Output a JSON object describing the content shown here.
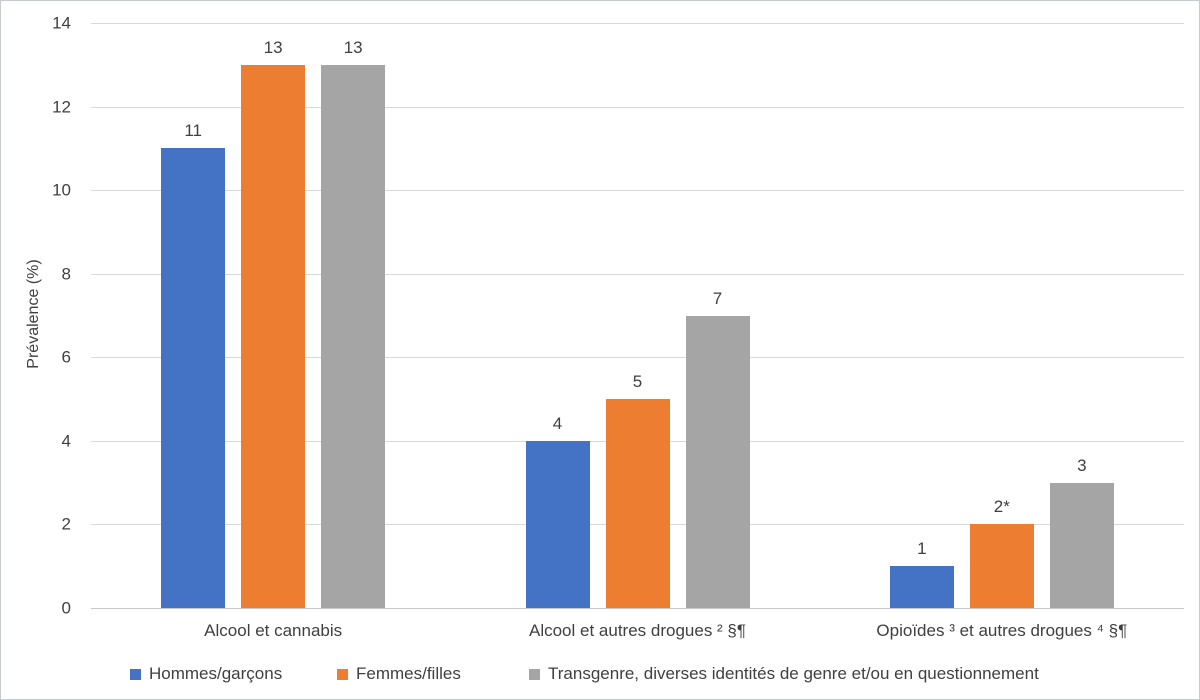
{
  "chart_data": {
    "type": "bar",
    "title": "",
    "xlabel": "",
    "ylabel": "Prévalence (%)",
    "ylim": [
      0,
      14
    ],
    "ytick_step": 2,
    "ytick_labels": [
      "0",
      "2",
      "4",
      "6",
      "8",
      "10",
      "12",
      "14"
    ],
    "grid": true,
    "legend_position": "bottom",
    "categories": [
      "Alcool et cannabis",
      "Alcool et autres drogues ² §¶",
      "Opioïdes ³  et autres drogues ⁴ §¶"
    ],
    "series": [
      {
        "name": "Hommes/garçons",
        "color": "#4472C4",
        "values": [
          11,
          4,
          1
        ],
        "labels": [
          "11",
          "4",
          "1"
        ]
      },
      {
        "name": "Femmes/filles",
        "color": "#ED7D31",
        "values": [
          13,
          5,
          2
        ],
        "labels": [
          "13",
          "5",
          "2*"
        ]
      },
      {
        "name": "Transgenre, diverses identités de genre et/ou en questionnement",
        "color": "#A5A5A5",
        "values": [
          13,
          7,
          3
        ],
        "labels": [
          "13",
          "7",
          "3"
        ]
      }
    ]
  }
}
